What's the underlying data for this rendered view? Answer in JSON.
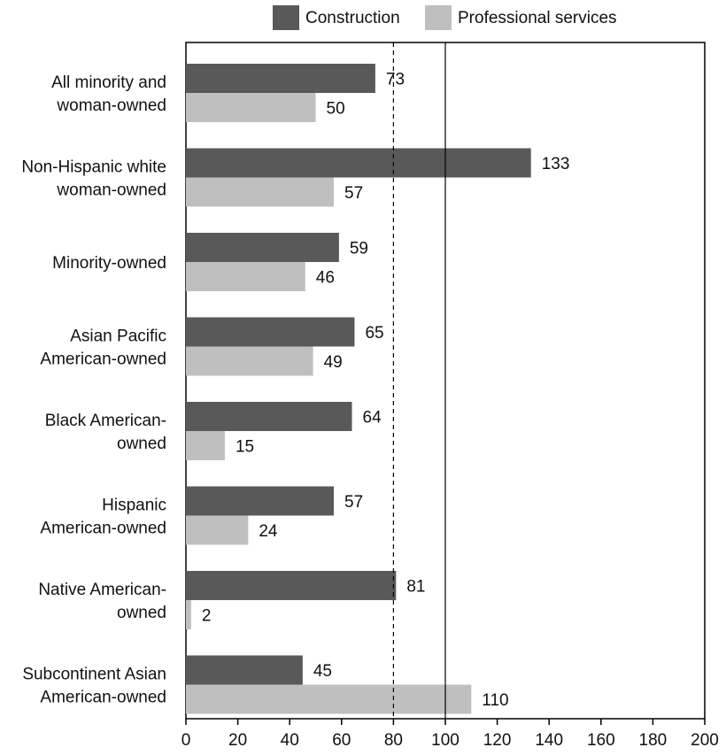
{
  "chart_data": {
    "type": "bar",
    "orientation": "horizontal",
    "categories": [
      [
        "All minority and",
        "woman-owned"
      ],
      [
        "Non-Hispanic white",
        "woman-owned"
      ],
      [
        "Minority-owned"
      ],
      [
        "Asian Pacific",
        "American-owned"
      ],
      [
        "Black American-",
        "owned"
      ],
      [
        "Hispanic",
        "American-owned"
      ],
      [
        "Native American-",
        "owned"
      ],
      [
        "Subcontinent Asian",
        "American-owned"
      ]
    ],
    "series": [
      {
        "name": "Construction",
        "color": "#595959",
        "values": [
          73,
          133,
          59,
          65,
          64,
          57,
          81,
          45
        ]
      },
      {
        "name": "Professional services",
        "color": "#bfbfbf",
        "values": [
          50,
          57,
          46,
          49,
          15,
          24,
          2,
          110
        ]
      }
    ],
    "xlim": [
      0,
      200
    ],
    "xticks": [
      0,
      20,
      40,
      60,
      80,
      100,
      120,
      140,
      160,
      180,
      200
    ],
    "reference_lines": [
      {
        "value": 80,
        "style": "dashed"
      },
      {
        "value": 100,
        "style": "solid"
      }
    ],
    "legend_position": "top",
    "title": "",
    "xlabel": "",
    "ylabel": ""
  }
}
